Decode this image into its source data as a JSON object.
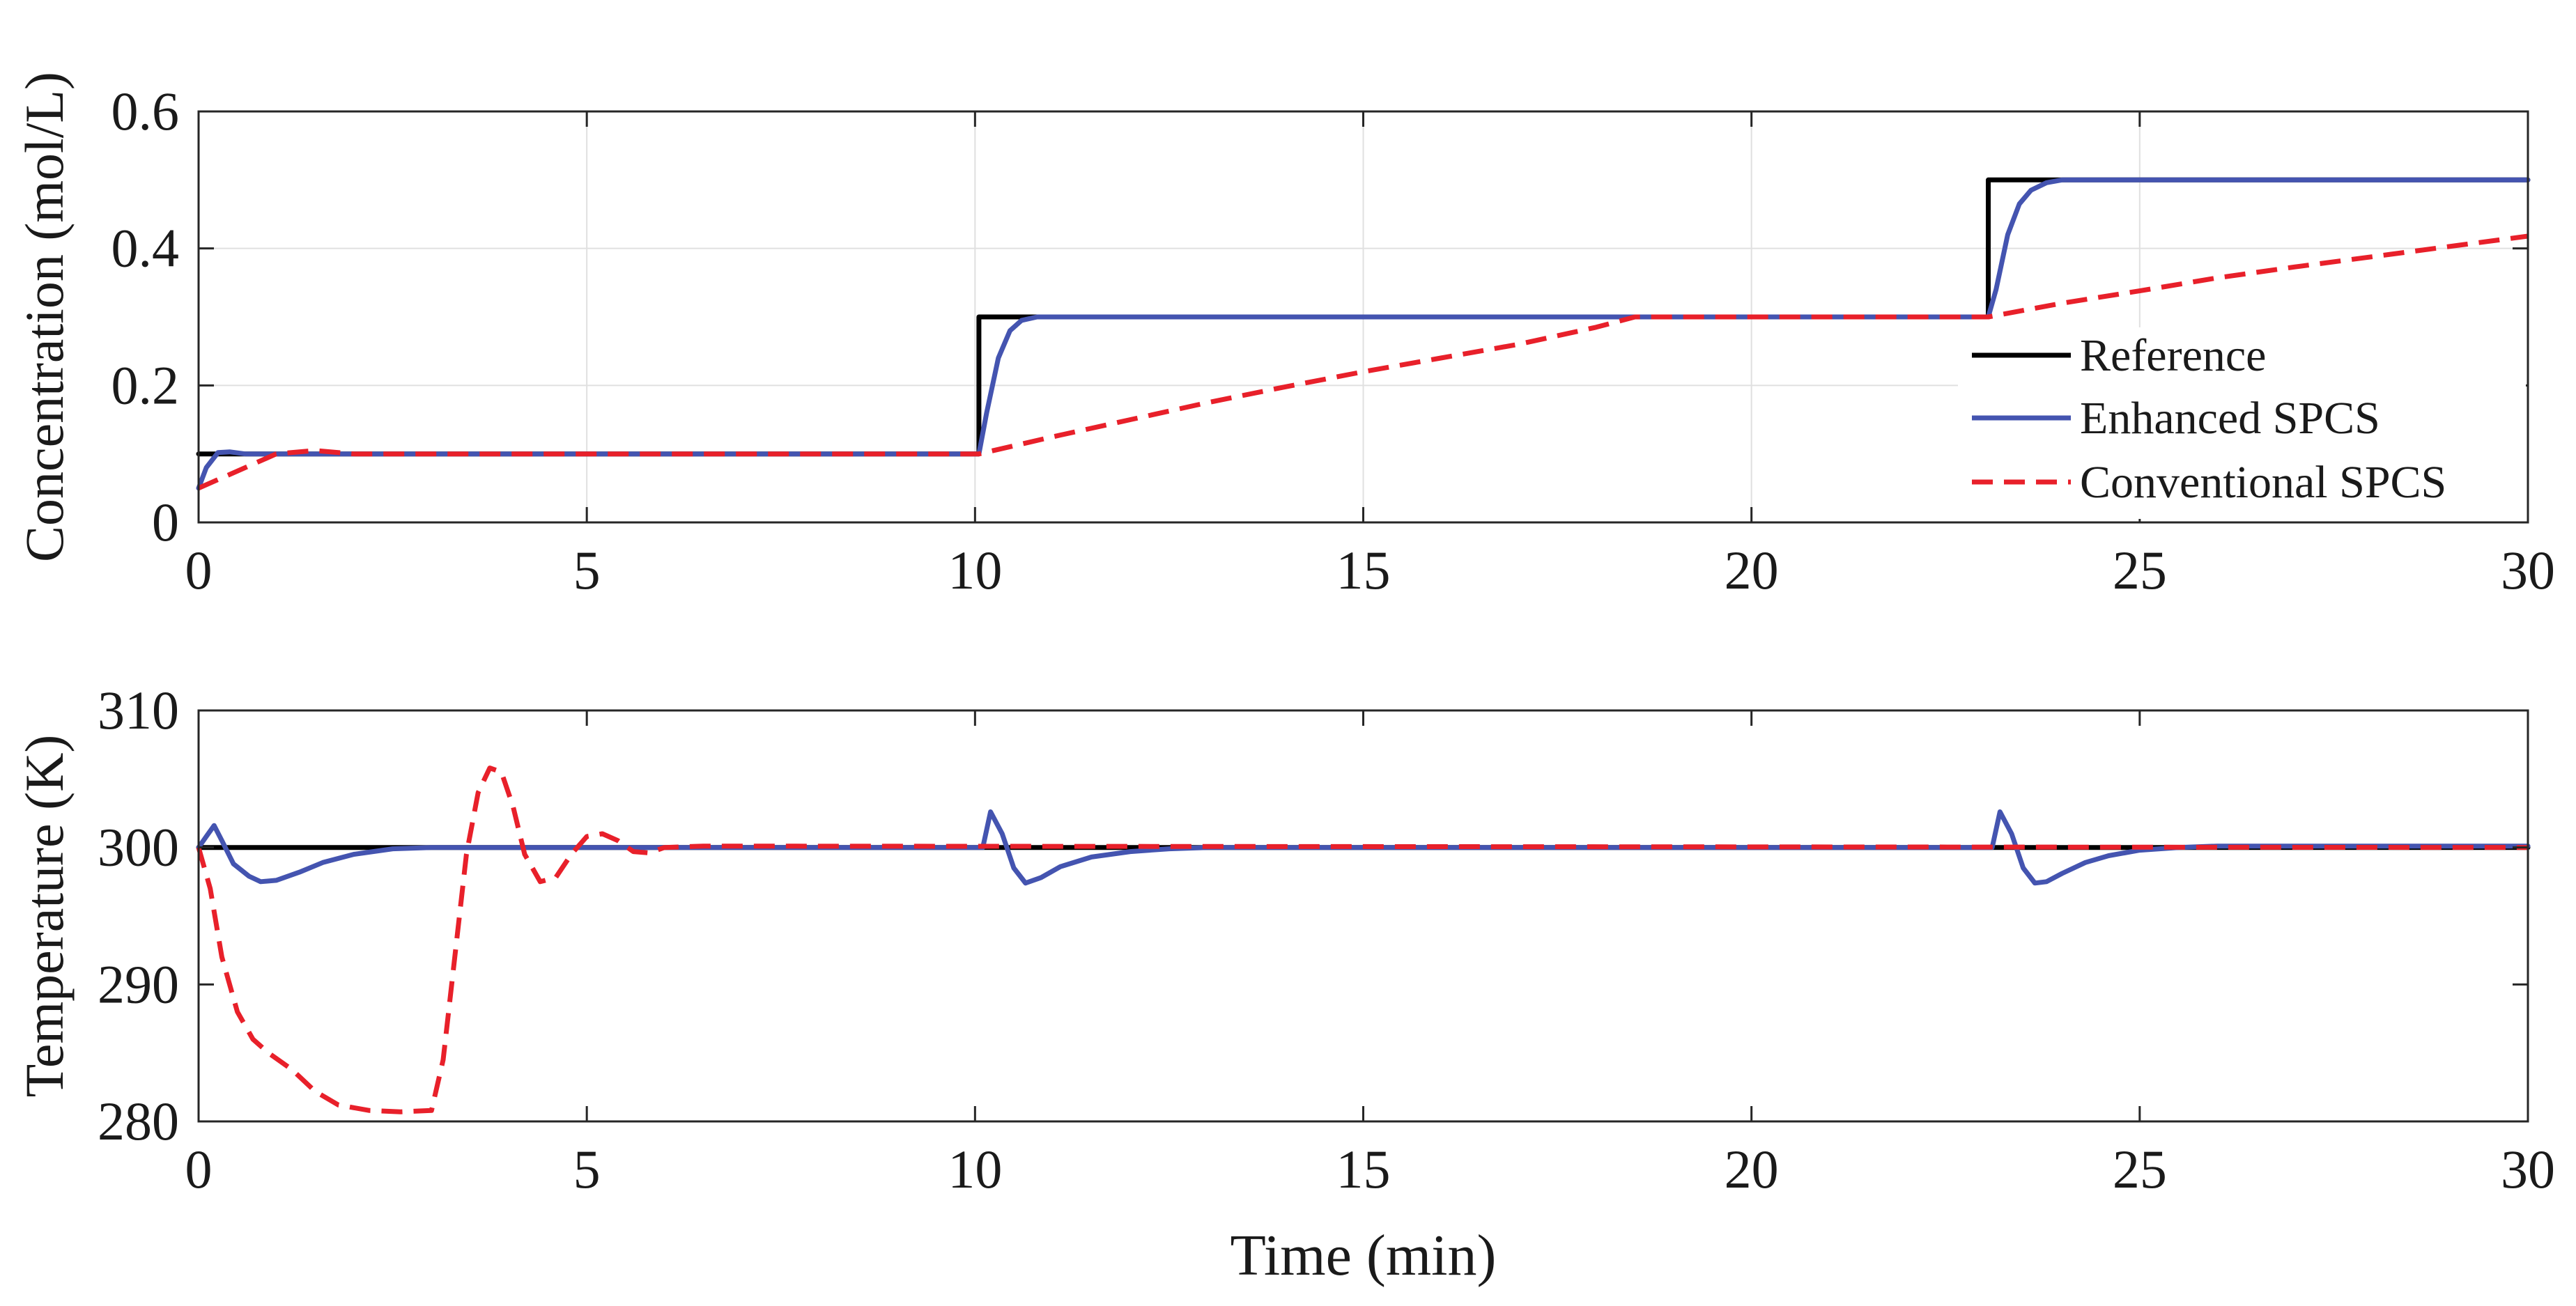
{
  "chart_data": [
    {
      "type": "line",
      "title": "",
      "xlabel": "",
      "ylabel": "Concentration (mol/L)",
      "xlim": [
        0,
        30
      ],
      "ylim": [
        0,
        0.6
      ],
      "xticks": [
        0,
        5,
        10,
        15,
        20,
        25,
        30
      ],
      "yticks": [
        0,
        0.2,
        0.4,
        0.6
      ],
      "xtick_labels": [
        "0",
        "5",
        "10",
        "15",
        "20",
        "25",
        "30"
      ],
      "ytick_labels": [
        "0",
        "0.2",
        "0.4",
        "0.6"
      ],
      "grid": true,
      "legend_position": "bottom-right",
      "series": [
        {
          "name": "Reference",
          "color": "#000000",
          "style": "solid",
          "x": [
            0,
            10.05,
            10.05,
            23.05,
            23.05,
            30
          ],
          "y": [
            0.1,
            0.1,
            0.3,
            0.3,
            0.5,
            0.5
          ]
        },
        {
          "name": "Enhanced SPCS",
          "color": "#4454b0",
          "style": "solid",
          "x": [
            0,
            0.1,
            0.25,
            0.4,
            0.6,
            1,
            10.05,
            10.15,
            10.3,
            10.45,
            10.6,
            10.8,
            11,
            23.05,
            23.15,
            23.3,
            23.45,
            23.6,
            23.8,
            24,
            24.3,
            30
          ],
          "y": [
            0.05,
            0.08,
            0.102,
            0.103,
            0.1,
            0.1,
            0.1,
            0.16,
            0.24,
            0.28,
            0.295,
            0.3,
            0.3,
            0.3,
            0.34,
            0.42,
            0.465,
            0.485,
            0.496,
            0.5,
            0.5,
            0.5
          ]
        },
        {
          "name": "Conventional SPCS",
          "color": "#e8202a",
          "style": "dashed",
          "x": [
            0,
            0.5,
            1,
            1.5,
            2,
            10.05,
            11,
            12,
            13,
            14,
            15,
            16,
            17,
            18,
            18.5,
            23.05,
            24,
            25,
            26,
            27,
            28,
            29,
            30
          ],
          "y": [
            0.05,
            0.075,
            0.1,
            0.105,
            0.1,
            0.1,
            0.125,
            0.15,
            0.175,
            0.198,
            0.22,
            0.24,
            0.26,
            0.285,
            0.3,
            0.3,
            0.32,
            0.338,
            0.357,
            0.373,
            0.388,
            0.403,
            0.418
          ]
        }
      ]
    },
    {
      "type": "line",
      "title": "",
      "xlabel": "Time (min)",
      "ylabel": "Temperature (K)",
      "xlim": [
        0,
        30
      ],
      "ylim": [
        280,
        310
      ],
      "xticks": [
        0,
        5,
        10,
        15,
        20,
        25,
        30
      ],
      "yticks": [
        280,
        290,
        300,
        310
      ],
      "xtick_labels": [
        "0",
        "5",
        "10",
        "15",
        "20",
        "25",
        "30"
      ],
      "ytick_labels": [
        "280",
        "290",
        "300",
        "310"
      ],
      "grid": false,
      "series": [
        {
          "name": "Reference",
          "color": "#000000",
          "style": "solid",
          "x": [
            0,
            30
          ],
          "y": [
            300,
            300
          ]
        },
        {
          "name": "Enhanced SPCS",
          "color": "#4454b0",
          "style": "solid",
          "x": [
            0,
            0.1,
            0.2,
            0.3,
            0.45,
            0.65,
            0.8,
            1,
            1.3,
            1.6,
            2,
            2.5,
            3,
            10.1,
            10.2,
            10.35,
            10.5,
            10.65,
            10.85,
            11.1,
            11.5,
            12,
            12.5,
            13,
            23.1,
            23.2,
            23.35,
            23.5,
            23.65,
            23.8,
            24,
            24.3,
            24.6,
            25,
            25.5,
            26,
            30
          ],
          "y": [
            300,
            300.8,
            301.6,
            300.5,
            298.8,
            297.9,
            297.5,
            297.6,
            298.2,
            298.9,
            299.5,
            299.9,
            300,
            300,
            302.6,
            301,
            298.5,
            297.4,
            297.8,
            298.6,
            299.3,
            299.7,
            299.9,
            300,
            300,
            302.6,
            301,
            298.5,
            297.4,
            297.5,
            298.1,
            298.9,
            299.4,
            299.8,
            300,
            300.1,
            300.1
          ]
        },
        {
          "name": "Conventional SPCS",
          "color": "#e8202a",
          "style": "dashed",
          "x": [
            0,
            0.15,
            0.3,
            0.5,
            0.7,
            0.9,
            1.2,
            1.5,
            1.8,
            2.2,
            2.6,
            3,
            3.15,
            3.3,
            3.45,
            3.6,
            3.75,
            3.9,
            4.05,
            4.2,
            4.4,
            4.6,
            4.8,
            5,
            5.2,
            5.4,
            5.6,
            5.8,
            6,
            6.5,
            30
          ],
          "y": [
            300,
            297,
            292,
            288,
            286,
            285,
            283.8,
            282.2,
            281.2,
            280.8,
            280.7,
            280.8,
            284.5,
            292,
            299.5,
            304,
            305.8,
            305.5,
            303,
            299.5,
            297.5,
            297.8,
            299.5,
            300.8,
            301,
            300.5,
            299.7,
            299.6,
            300,
            300.1,
            300
          ]
        }
      ]
    }
  ]
}
